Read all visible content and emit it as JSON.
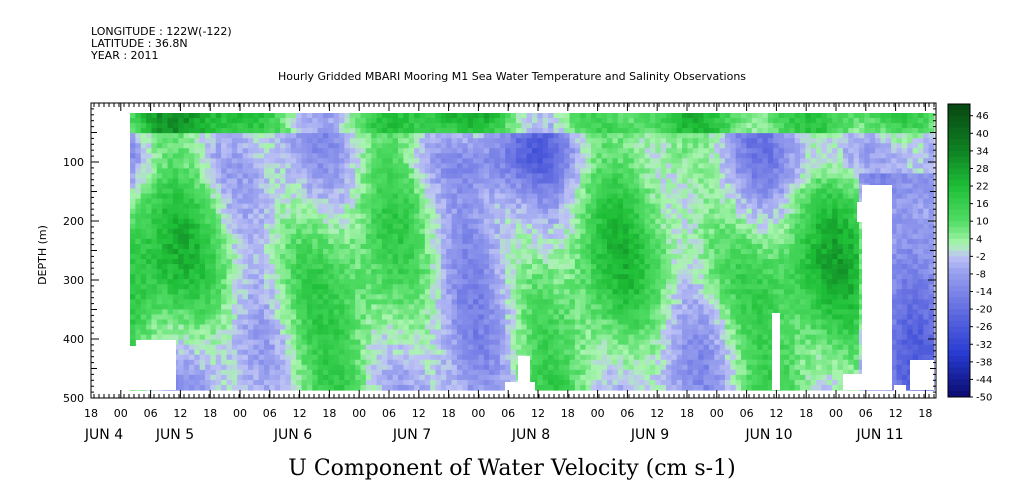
{
  "header": {
    "longitude": "LONGITUDE : 122W(-122)",
    "latitude": "LATITUDE : 36.8N",
    "year": "YEAR : 2011"
  },
  "chart_data": {
    "type": "heatmap",
    "title": "Hourly Gridded MBARI Mooring M1 Sea Water Temperature and Salinity Observations",
    "xlabel": "U Component of Water Velocity (cm s-1)",
    "ylabel": "DEPTH (m)",
    "ylim": [
      500,
      0
    ],
    "y_ticks": [
      100,
      200,
      300,
      400,
      500
    ],
    "x_hour_labels": [
      "18",
      "00",
      "06",
      "12",
      "18",
      "00",
      "06",
      "12",
      "18",
      "00",
      "06",
      "12",
      "18",
      "00",
      "06",
      "12",
      "18",
      "00",
      "06",
      "12",
      "18",
      "00",
      "06",
      "12",
      "18",
      "00",
      "06",
      "12",
      "18"
    ],
    "x_day_labels": [
      "JUN  4",
      "JUN  5",
      "JUN  6",
      "JUN  7",
      "JUN  8",
      "JUN  9",
      "JUN 10",
      "JUN 11"
    ],
    "colorbar_levels": [
      "46",
      "40",
      "34",
      "28",
      "22",
      "16",
      "10",
      "4",
      "-2",
      "-8",
      "-14",
      "-20",
      "-26",
      "-32",
      "-38",
      "-44",
      "-50"
    ],
    "value_range": [
      -50,
      50
    ],
    "colors": {
      "strong_pos": "#0a4a12",
      "mid_pos": "#22c83a",
      "light_pos": "#9ff0a8",
      "light_neg": "#b8bcf4",
      "mid_neg": "#8088e8",
      "strong_neg": "#0a0a70"
    }
  }
}
